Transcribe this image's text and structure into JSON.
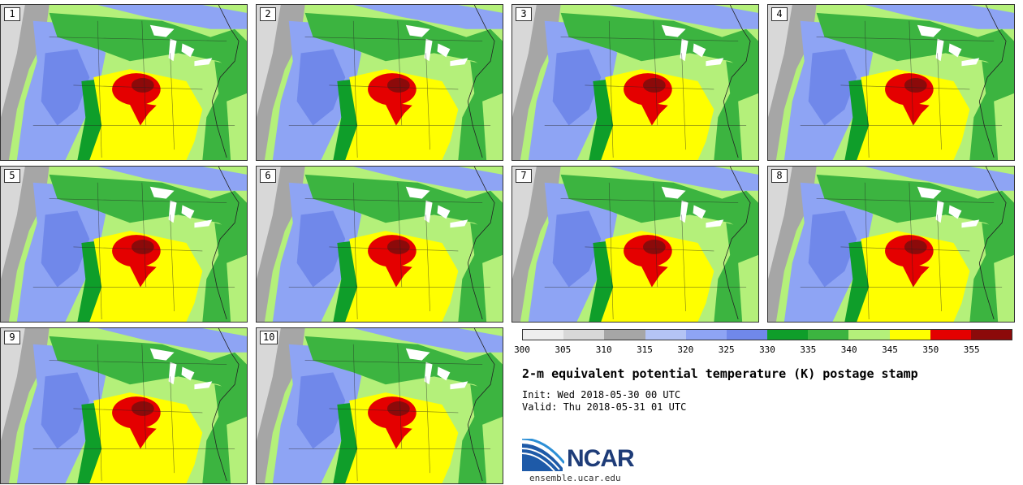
{
  "panels": [
    {
      "label": "1",
      "hot_cluster": "center-left",
      "cool_west": "strong"
    },
    {
      "label": "2",
      "hot_cluster": "center-left",
      "cool_west": "strong"
    },
    {
      "label": "3",
      "hot_cluster": "center-left",
      "cool_west": "strong"
    },
    {
      "label": "4",
      "hot_cluster": "center",
      "cool_west": "strong"
    },
    {
      "label": "5",
      "hot_cluster": "center-left",
      "cool_west": "strong"
    },
    {
      "label": "6",
      "hot_cluster": "center-left",
      "cool_west": "strong"
    },
    {
      "label": "7",
      "hot_cluster": "center-left",
      "cool_west": "strong"
    },
    {
      "label": "8",
      "hot_cluster": "center",
      "cool_west": "strong"
    },
    {
      "label": "9",
      "hot_cluster": "center-left",
      "cool_west": "strong"
    },
    {
      "label": "10",
      "hot_cluster": "center-left",
      "cool_west": "strong"
    }
  ],
  "colorbar": {
    "colors": [
      "#eeeeee",
      "#d8d8d8",
      "#a6a6a6",
      "#b4c4f5",
      "#8ea4f4",
      "#7088ea",
      "#0f9e2a",
      "#3cb440",
      "#b4f07a",
      "#ffff00",
      "#e40000",
      "#8c0a0a"
    ],
    "tick_labels": [
      "300",
      "305",
      "310",
      "315",
      "320",
      "325",
      "330",
      "335",
      "340",
      "345",
      "350",
      "355"
    ]
  },
  "title": "2-m equivalent potential temperature (K) postage stamp",
  "init": "Init: Wed 2018-05-30 00 UTC",
  "valid": "Valid: Thu 2018-05-31 01 UTC",
  "logo_text": "NCAR",
  "url": "ensemble.ucar.edu"
}
